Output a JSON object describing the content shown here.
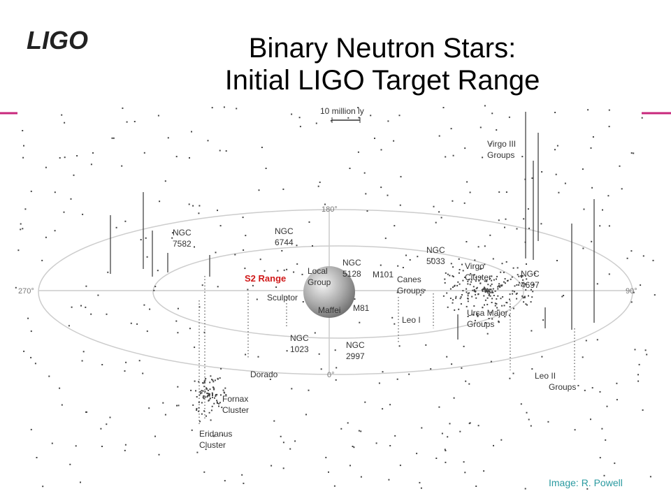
{
  "header": {
    "logo": "LIGO",
    "title": [
      "Binary Neutron Stars:",
      "Initial LIGO Target Range"
    ]
  },
  "map": {
    "scale": "10 million ly",
    "degrees": [
      "180°",
      "270°",
      "90°",
      "0°"
    ],
    "highlight": "S2 Range",
    "labels": [
      [
        "Virgo III",
        "Groups"
      ],
      [
        "NGC",
        "7582"
      ],
      [
        "NGC",
        "6744"
      ],
      [
        "Local",
        "Group"
      ],
      [
        "NGC",
        "5128"
      ],
      [
        "M101"
      ],
      [
        "NGC",
        "5033"
      ],
      [
        "Canes",
        "Groups"
      ],
      [
        "Virgo",
        "Cluster"
      ],
      [
        "NGC",
        "4697"
      ],
      [
        "Sculptor"
      ],
      [
        "Maffei"
      ],
      [
        "M81"
      ],
      [
        "Leo I"
      ],
      [
        "Ursa Major",
        "Groups"
      ],
      [
        "NGC",
        "1023"
      ],
      [
        "NGC",
        "2997"
      ],
      [
        "Dorado"
      ],
      [
        "Leo II",
        "Groups"
      ],
      [
        "Fornax",
        "Cluster"
      ],
      [
        "Eridanus",
        "Cluster"
      ]
    ]
  },
  "footer": {
    "credit": "Image: R. Powell"
  }
}
